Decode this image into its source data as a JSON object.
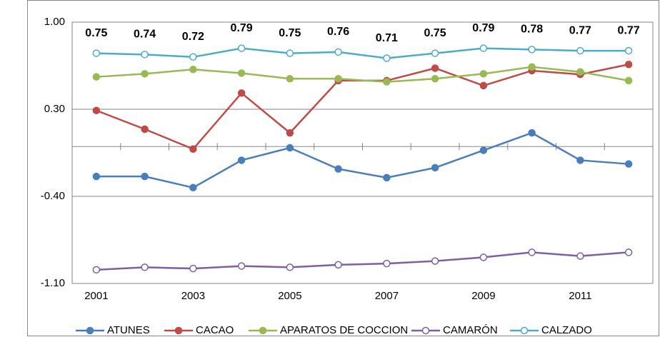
{
  "chart_data": {
    "type": "line",
    "categories": [
      "2001",
      null,
      "2003",
      null,
      "2005",
      null,
      "2007",
      null,
      "2009",
      null,
      "2011",
      null
    ],
    "series": [
      {
        "name": "ATUNES",
        "color": "#4a7ebb",
        "values": [
          -0.24,
          -0.24,
          -0.33,
          -0.11,
          -0.01,
          -0.18,
          -0.25,
          -0.17,
          -0.03,
          0.11,
          -0.11,
          -0.14
        ]
      },
      {
        "name": "CACAO",
        "color": "#be4b48",
        "values": [
          0.29,
          0.14,
          -0.02,
          0.43,
          0.11,
          0.53,
          0.53,
          0.63,
          0.49,
          0.61,
          0.58,
          0.66
        ]
      },
      {
        "name": "APARATOS DE COCCION",
        "color": "#98b954",
        "values": [
          0.56,
          0.585,
          0.62,
          0.59,
          0.545,
          0.545,
          0.52,
          0.545,
          0.585,
          0.64,
          0.6,
          0.53
        ]
      },
      {
        "name": "CAMARÓN",
        "color": "#7d60a0",
        "values": [
          -0.99,
          -0.97,
          -0.98,
          -0.96,
          -0.97,
          -0.95,
          -0.94,
          -0.92,
          -0.89,
          -0.85,
          -0.88,
          -0.85
        ]
      },
      {
        "name": "CALZADO",
        "color": "#4bacc6",
        "values": [
          0.75,
          0.74,
          0.72,
          0.79,
          0.75,
          0.76,
          0.71,
          0.75,
          0.79,
          0.78,
          0.77,
          0.77
        ]
      }
    ],
    "data_labels_series": "CALZADO",
    "ylim": [
      -1.1,
      1.0
    ],
    "yticks": [
      {
        "value": -1.1,
        "label": "-1.10"
      },
      {
        "value": -0.4,
        "label": "-0.40"
      },
      {
        "value": 0.3,
        "label": "0.30"
      },
      {
        "value": 1.0,
        "label": "1.00"
      }
    ],
    "grid": true
  }
}
